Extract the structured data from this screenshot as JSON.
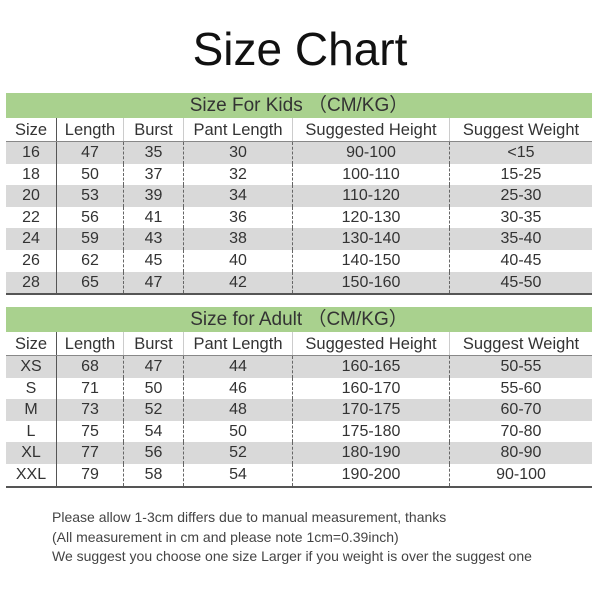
{
  "title": "Size Chart",
  "columns": [
    "Size",
    "Length",
    "Burst",
    "Pant Length",
    "Suggested Height",
    "Suggest Weight"
  ],
  "kids": {
    "heading": "Size For Kids （CM/KG）",
    "rows": [
      [
        "16",
        "47",
        "35",
        "30",
        "90-100",
        "<15"
      ],
      [
        "18",
        "50",
        "37",
        "32",
        "100-110",
        "15-25"
      ],
      [
        "20",
        "53",
        "39",
        "34",
        "110-120",
        "25-30"
      ],
      [
        "22",
        "56",
        "41",
        "36",
        "120-130",
        "30-35"
      ],
      [
        "24",
        "59",
        "43",
        "38",
        "130-140",
        "35-40"
      ],
      [
        "26",
        "62",
        "45",
        "40",
        "140-150",
        "40-45"
      ],
      [
        "28",
        "65",
        "47",
        "42",
        "150-160",
        "45-50"
      ]
    ]
  },
  "adult": {
    "heading": "Size for Adult （CM/KG）",
    "rows": [
      [
        "XS",
        "68",
        "47",
        "44",
        "160-165",
        "50-55"
      ],
      [
        "S",
        "71",
        "50",
        "46",
        "160-170",
        "55-60"
      ],
      [
        "M",
        "73",
        "52",
        "48",
        "170-175",
        "60-70"
      ],
      [
        "L",
        "75",
        "54",
        "50",
        "175-180",
        "70-80"
      ],
      [
        "XL",
        "77",
        "56",
        "52",
        "180-190",
        "80-90"
      ],
      [
        "XXL",
        "79",
        "58",
        "54",
        "190-200",
        "90-100"
      ]
    ]
  },
  "notes": [
    "Please allow 1-3cm differs due to manual measurement, thanks",
    "(All measurement in cm and please note 1cm=0.39inch)",
    "We suggest you choose one size Larger if you weight is over the suggest one"
  ],
  "colors": {
    "header_band": "#a9d18e",
    "stripe": "#d9d9d9"
  }
}
